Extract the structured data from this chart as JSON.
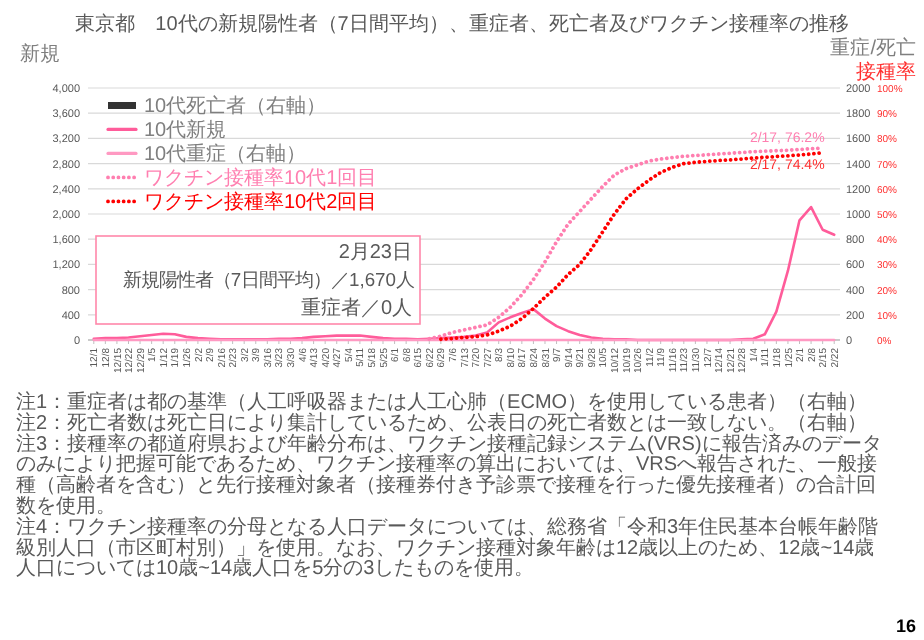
{
  "chart_data": {
    "type": "line",
    "title": "東京都　10代の新規陽性者（7日間平均）、重症者、死亡者及びワクチン接種率の推移",
    "ylabel": "新規",
    "y2label": "重症/死亡",
    "y3label": "接種率",
    "categories": [
      "12/1",
      "12/8",
      "12/15",
      "12/22",
      "12/29",
      "1/5",
      "1/12",
      "1/19",
      "1/26",
      "2/2",
      "2/9",
      "2/16",
      "2/23",
      "3/2",
      "3/9",
      "3/16",
      "3/23",
      "3/30",
      "4/6",
      "4/13",
      "4/20",
      "4/27",
      "5/4",
      "5/11",
      "5/18",
      "5/25",
      "6/1",
      "6/8",
      "6/15",
      "6/22",
      "6/29",
      "7/6",
      "7/13",
      "7/20",
      "7/27",
      "8/3",
      "8/10",
      "8/17",
      "8/24",
      "8/31",
      "9/7",
      "9/14",
      "9/21",
      "9/28",
      "10/5",
      "10/12",
      "10/19",
      "10/26",
      "11/2",
      "11/9",
      "11/16",
      "11/23",
      "11/30",
      "12/7",
      "12/14",
      "12/21",
      "12/28",
      "1/4",
      "1/11",
      "1/18",
      "1/25",
      "2/1",
      "2/8",
      "2/15",
      "2/22"
    ],
    "ylim": [
      0,
      4000
    ],
    "yticks": [
      0,
      400,
      800,
      {
        "value": 1200,
        "label": "1,200"
      },
      {
        "value": 1600,
        "label": "1,600"
      },
      {
        "value": 2000,
        "label": "2,000"
      },
      {
        "value": 2400,
        "label": "2,400"
      },
      {
        "value": 2800,
        "label": "2,800"
      },
      {
        "value": 3200,
        "label": "3,200"
      },
      {
        "value": 3600,
        "label": "3,600"
      },
      {
        "value": 4000,
        "label": "4,000"
      }
    ],
    "y2lim": [
      0,
      2000
    ],
    "y2ticks": [
      0,
      200,
      400,
      600,
      800,
      1000,
      1200,
      1400,
      1600,
      1800,
      2000
    ],
    "y3lim": [
      0,
      100
    ],
    "y3ticks": [
      {
        "value": 0,
        "label": "0%"
      },
      {
        "value": 10,
        "label": "10%"
      },
      {
        "value": 20,
        "label": "20%"
      },
      {
        "value": 30,
        "label": "30%"
      },
      {
        "value": 40,
        "label": "40%"
      },
      {
        "value": 50,
        "label": "50%"
      },
      {
        "value": 60,
        "label": "60%"
      },
      {
        "value": 70,
        "label": "70%"
      },
      {
        "value": 80,
        "label": "80%"
      },
      {
        "value": 90,
        "label": "90%"
      },
      {
        "value": 100,
        "label": "100%"
      }
    ],
    "grid": "y",
    "legend": "top left",
    "series": [
      {
        "name": "10代死亡者（右軸）",
        "type": "bar",
        "axis": "y2",
        "color": "#333333",
        "values": [
          0,
          0,
          0,
          0,
          0,
          0,
          0,
          0,
          0,
          0,
          0,
          0,
          0,
          0,
          0,
          0,
          0,
          0,
          0,
          0,
          0,
          0,
          0,
          0,
          0,
          0,
          0,
          0,
          0,
          0,
          0,
          0,
          0,
          0,
          0,
          0,
          0,
          0,
          0,
          0,
          0,
          0,
          0,
          0,
          0,
          0,
          0,
          0,
          0,
          0,
          0,
          0,
          0,
          0,
          0,
          0,
          0,
          0,
          0,
          0,
          0,
          0,
          0,
          0,
          0
        ]
      },
      {
        "name": "10代新規",
        "color": "#ff5c9a",
        "line_style": "solid",
        "values": [
          20,
          30,
          30,
          40,
          60,
          80,
          100,
          90,
          50,
          30,
          20,
          10,
          10,
          10,
          10,
          10,
          20,
          20,
          30,
          50,
          60,
          70,
          70,
          70,
          50,
          30,
          20,
          20,
          10,
          20,
          30,
          40,
          50,
          70,
          120,
          280,
          360,
          430,
          490,
          340,
          220,
          140,
          80,
          40,
          20,
          10,
          10,
          0,
          0,
          0,
          0,
          0,
          0,
          0,
          0,
          0,
          10,
          20,
          90,
          450,
          1100,
          1900,
          2110,
          1750,
          1670
        ]
      },
      {
        "name": "10代重症（右軸）",
        "axis": "y2",
        "color": "#ff99c2",
        "line_style": "solid",
        "values": [
          0,
          0,
          0,
          0,
          0,
          0,
          0,
          0,
          0,
          0,
          0,
          0,
          0,
          0,
          0,
          0,
          0,
          0,
          0,
          0,
          0,
          0,
          0,
          0,
          0,
          0,
          0,
          0,
          0,
          0,
          0,
          0,
          0,
          0,
          0,
          0,
          0,
          0,
          0,
          0,
          0,
          0,
          0,
          0,
          0,
          0,
          0,
          0,
          0,
          0,
          0,
          0,
          0,
          0,
          0,
          0,
          0,
          0,
          0,
          0,
          0,
          0,
          0,
          0,
          0
        ]
      },
      {
        "name": "ワクチン接種率10代1回目",
        "axis": "y3",
        "color": "#ff7fb0",
        "line_style": "dotted",
        "values": [
          null,
          null,
          null,
          null,
          null,
          null,
          null,
          null,
          null,
          null,
          null,
          null,
          null,
          null,
          null,
          null,
          null,
          null,
          null,
          null,
          null,
          null,
          null,
          null,
          null,
          null,
          null,
          null,
          null,
          0.5,
          1.5,
          3,
          4,
          5,
          6,
          9,
          13,
          18,
          24,
          31,
          39,
          46,
          51,
          56,
          61,
          65.5,
          68,
          69.5,
          71,
          71.8,
          72.4,
          72.9,
          73.2,
          73.5,
          73.8,
          74.1,
          74.4,
          74.7,
          74.9,
          75.1,
          75.3,
          75.6,
          75.9,
          76.1,
          null
        ]
      },
      {
        "name": "ワクチン接種率10代2回目",
        "axis": "y3",
        "color": "#ff0000",
        "line_style": "dotted",
        "values": [
          null,
          null,
          null,
          null,
          null,
          null,
          null,
          null,
          null,
          null,
          null,
          null,
          null,
          null,
          null,
          null,
          null,
          null,
          null,
          null,
          null,
          null,
          null,
          null,
          null,
          null,
          null,
          null,
          null,
          null,
          0.3,
          0.6,
          1,
          1.3,
          2,
          3.5,
          5.5,
          8.5,
          12.5,
          17,
          21,
          26,
          30,
          36,
          43,
          50,
          56,
          60,
          63.5,
          66.5,
          68.5,
          70,
          70.5,
          70.9,
          71.2,
          71.5,
          71.8,
          72.2,
          72.5,
          72.8,
          73.1,
          73.4,
          73.8,
          74.3,
          null
        ]
      }
    ],
    "annotations": [
      "2/17, 76.2%",
      "2/17, 74.4%",
      "注1：重症者は都の基準（人工呼吸器または人工心肺（ECMO）を使用している患者）（右軸）",
      "注2：死亡者数は死亡日により集計しているため、公表日の死亡者数とは一致しない。（右軸）",
      "注3：接種率の都道府県および年齢分布は、ワクチン接種記録システム(VRS)に報告済みのデータのみにより把握可能であるため、ワクチン接種率の算出においては、VRSへ報告された、一般接種（高齢者を含む）と先行接種対象者（接種券付き予診票で接種を行った優先接種者）の合計回数を使用。",
      "注4：ワクチン接種率の分母となる人口データについては、総務省「令和3年住民基本台帳年齢階級別人口（市区町村別）」を使用。なお、ワクチン接種対象年齢は12歳以上のため、12歳~14歳人口については10歳~14歳人口を5分の3したものを使用。",
      "2月23日",
      "新規陽性者（7日間平均）／1,670人",
      "重症者／0人",
      "16"
    ]
  }
}
